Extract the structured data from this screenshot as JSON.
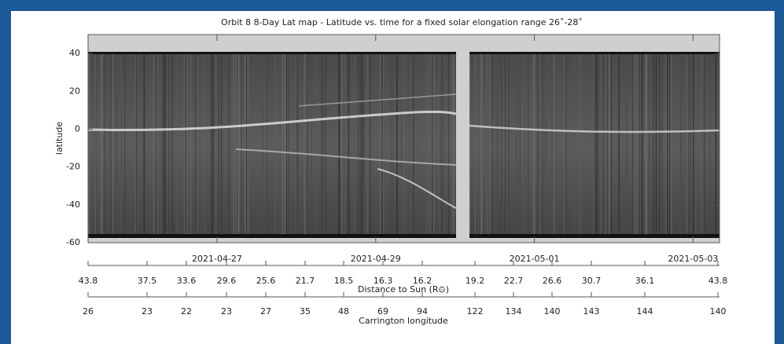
{
  "chart_data": {
    "type": "image-map",
    "title": "Orbit 8 8-Day Lat map - Latitude vs. time for a fixed solar elongation range 26˚-28˚",
    "ylabel": "latitude",
    "ylim": [
      -60,
      50
    ],
    "yticks": [
      -60,
      -40,
      -20,
      0,
      20,
      40
    ],
    "xlim": [
      "2021-04-25T09:00",
      "2021-05-03T08:00"
    ],
    "xticks": [
      "2021-04-27",
      "2021-04-29",
      "2021-05-01",
      "2021-05-03"
    ],
    "distance_label": "Distance to Sun (R⊙)",
    "distance_ticks": [
      43.8,
      37.5,
      33.6,
      29.6,
      25.6,
      21.7,
      18.5,
      16.3,
      16.2,
      19.2,
      22.7,
      26.6,
      30.7,
      36.1,
      43.8
    ],
    "carrington_label": "Carrington longitude",
    "carrington_ticks": [
      26,
      23,
      22,
      23,
      27,
      35,
      48,
      69,
      94,
      122,
      134,
      140,
      143,
      144,
      140
    ]
  }
}
